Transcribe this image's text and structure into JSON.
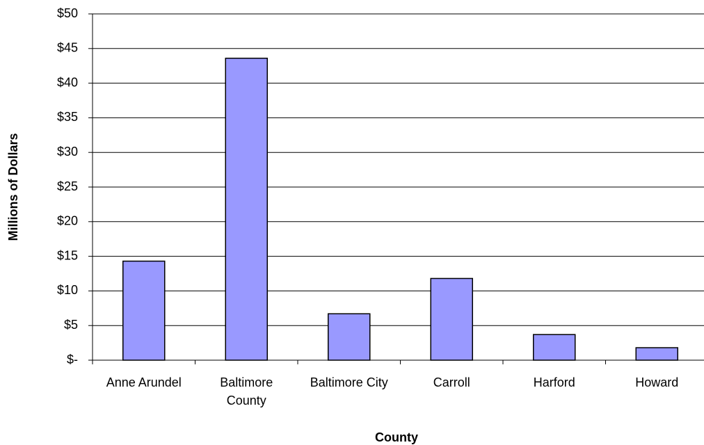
{
  "chart_data": {
    "type": "bar",
    "x_label": "County",
    "y_label": "Millions of Dollars",
    "categories": [
      "Anne Arundel",
      "Baltimore County",
      "Baltimore City",
      "Carroll",
      "Harford",
      "Howard"
    ],
    "values": [
      14.3,
      43.6,
      6.7,
      11.8,
      3.7,
      1.8
    ],
    "color": "#9999ff",
    "ylim": [
      0,
      50
    ],
    "yticks": [
      {
        "value": 0,
        "label": "$-"
      },
      {
        "value": 5,
        "label": "$5"
      },
      {
        "value": 10,
        "label": "$10"
      },
      {
        "value": 15,
        "label": "$15"
      },
      {
        "value": 20,
        "label": "$20"
      },
      {
        "value": 25,
        "label": "$25"
      },
      {
        "value": 30,
        "label": "$30"
      },
      {
        "value": 35,
        "label": "$35"
      },
      {
        "value": 40,
        "label": "$40"
      },
      {
        "value": 45,
        "label": "$45"
      },
      {
        "value": 50,
        "label": "$50"
      }
    ],
    "grid": true
  }
}
